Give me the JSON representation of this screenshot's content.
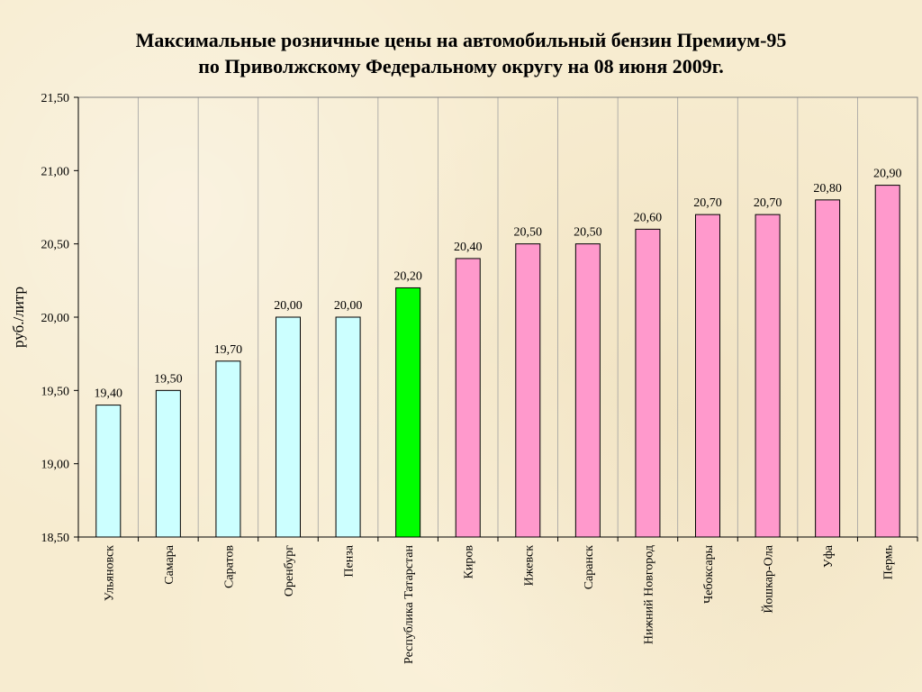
{
  "chart_data": {
    "type": "bar",
    "title": "Максимальные розничные цены на автомобильный бензин Премиум-95",
    "subtitle": "по Приволжскому Федеральному округу на 08 июня 2009г.",
    "xlabel": "",
    "ylabel": "руб./литр",
    "ylim": [
      18.5,
      21.5
    ],
    "yticks": [
      "21,50",
      "21,00",
      "20,50",
      "20,00",
      "19,50",
      "19,00",
      "18,50"
    ],
    "ytick_values": [
      21.5,
      21.0,
      20.5,
      20.0,
      19.5,
      19.0,
      18.5
    ],
    "grid": "vertical",
    "categories": [
      "Ульяновск",
      "Самара",
      "Саратов",
      "Оренбург",
      "Пенза",
      "Республика Татарстан",
      "Киров",
      "Ижевск",
      "Саранск",
      "Нижний Новгород",
      "Чебоксары",
      "Йошкар-Ола",
      "Уфа",
      "Пермь"
    ],
    "values": [
      19.4,
      19.5,
      19.7,
      20.0,
      20.0,
      20.2,
      20.4,
      20.5,
      20.5,
      20.6,
      20.7,
      20.7,
      20.8,
      20.9
    ],
    "data_labels": [
      "19,40",
      "19,50",
      "19,70",
      "20,00",
      "20,00",
      "20,20",
      "20,40",
      "20,50",
      "20,50",
      "20,60",
      "20,70",
      "20,70",
      "20,80",
      "20,90"
    ],
    "bar_colors": [
      "#ccffff",
      "#ccffff",
      "#ccffff",
      "#ccffff",
      "#ccffff",
      "#00ff00",
      "#ff99cc",
      "#ff99cc",
      "#ff99cc",
      "#ff99cc",
      "#ff99cc",
      "#ff99cc",
      "#ff99cc",
      "#ff99cc"
    ]
  }
}
